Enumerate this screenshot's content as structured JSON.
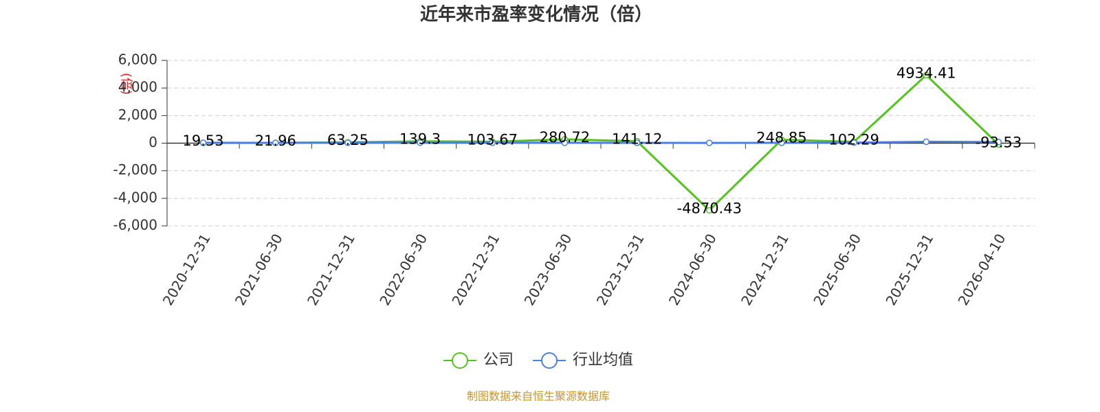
{
  "chart_data": {
    "type": "line",
    "title": "近年来市盈率变化情况（倍）",
    "y_label": "(倍)",
    "source": "制图数据来自恒生聚源数据库",
    "categories": [
      "2020-12-31",
      "2021-06-30",
      "2021-12-31",
      "2022-06-30",
      "2022-12-31",
      "2023-06-30",
      "2023-12-31",
      "2024-06-30",
      "2024-12-31",
      "2025-06-30",
      "2025-12-31",
      "2026-04-10"
    ],
    "series": [
      {
        "name": "公司",
        "color": "#52c41a",
        "values": [
          19.53,
          21.96,
          63.25,
          139.3,
          103.67,
          280.72,
          141.12,
          -4870.43,
          248.85,
          102.29,
          4934.41,
          -93.53
        ],
        "show_labels": true
      },
      {
        "name": "行业均值",
        "color": "#4a7fe0",
        "values": [
          30,
          25,
          30,
          35,
          30,
          30,
          25,
          20,
          25,
          40,
          100,
          80
        ],
        "show_labels": false
      }
    ],
    "ylim": [
      -6000,
      6000
    ],
    "yticks": [
      {
        "value": -6000,
        "label": "-6,000"
      },
      {
        "value": -4000,
        "label": "-4,000"
      },
      {
        "value": -2000,
        "label": "-2,000"
      },
      0,
      {
        "value": 2000,
        "label": "2,000"
      },
      {
        "value": 4000,
        "label": "4,000"
      },
      {
        "value": 6000,
        "label": "6,000"
      }
    ],
    "grid": true
  }
}
